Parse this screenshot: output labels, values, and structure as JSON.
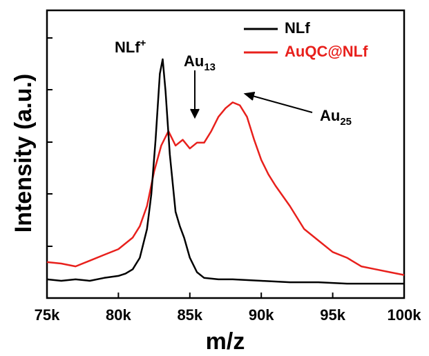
{
  "chart_data": {
    "type": "line",
    "xlabel": "m/z",
    "ylabel": "Intensity (a.u.)",
    "xlim": [
      75000,
      100000
    ],
    "xticks": [
      {
        "value": 75000,
        "label": "75k"
      },
      {
        "value": 80000,
        "label": "80k"
      },
      {
        "value": 85000,
        "label": "85k"
      },
      {
        "value": 90000,
        "label": "90k"
      },
      {
        "value": 95000,
        "label": "95k"
      },
      {
        "value": 100000,
        "label": "100k"
      }
    ],
    "ylim": [
      0,
      100
    ],
    "legend": "upper right",
    "series": [
      {
        "name": "NLf",
        "color": "#000000",
        "x": [
          75000,
          76000,
          77000,
          78000,
          79000,
          80000,
          80500,
          81000,
          81500,
          82000,
          82300,
          82600,
          82900,
          83100,
          83300,
          83600,
          84000,
          84300,
          84600,
          85000,
          85500,
          86000,
          87000,
          88000,
          90000,
          92000,
          94000,
          96000,
          98000,
          100000
        ],
        "values": [
          6.5,
          6,
          6.5,
          6,
          7,
          7.7,
          8.5,
          10,
          14,
          24,
          36,
          55,
          78,
          83,
          72,
          50,
          30,
          25,
          21,
          14,
          9,
          7,
          6.5,
          6.5,
          6,
          5.5,
          5.5,
          5,
          5,
          5
        ]
      },
      {
        "name": "AuQC@NLf",
        "color": "#e8201c",
        "x": [
          75000,
          76000,
          77000,
          78000,
          79000,
          80000,
          81000,
          81500,
          82000,
          82500,
          83000,
          83500,
          84000,
          84500,
          85000,
          85500,
          86000,
          86500,
          87000,
          87500,
          88000,
          88500,
          89000,
          89500,
          90000,
          90500,
          91000,
          92000,
          93000,
          94000,
          95000,
          96000,
          97000,
          98000,
          99000,
          100000
        ],
        "values": [
          12.5,
          12,
          11,
          13,
          15,
          17,
          21,
          25,
          32,
          44,
          53,
          58,
          53,
          55,
          52,
          54,
          54,
          58,
          63,
          66,
          68,
          67,
          63,
          55,
          48,
          43,
          39,
          32,
          24,
          20,
          16,
          14,
          11,
          10,
          9,
          8
        ]
      }
    ],
    "annotations": [
      {
        "text": "NLf",
        "sup": "+"
      },
      {
        "text": "Au",
        "sub": "13"
      },
      {
        "text": "Au",
        "sub": "25"
      }
    ]
  }
}
